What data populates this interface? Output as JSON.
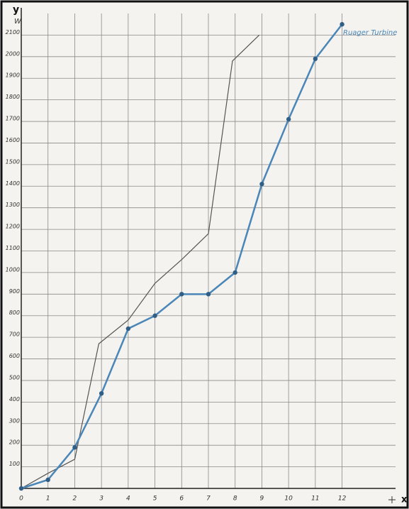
{
  "chart_data": {
    "type": "line",
    "y_label": "y",
    "y_unit": "W",
    "x_label": "x",
    "xlim": [
      0,
      14
    ],
    "ylim": [
      0,
      2200
    ],
    "xticks": [
      0,
      1,
      2,
      3,
      4,
      5,
      6,
      7,
      8,
      9,
      10,
      11,
      12
    ],
    "yticks": [
      100,
      200,
      300,
      400,
      500,
      600,
      700,
      800,
      900,
      1000,
      1100,
      1200,
      1300,
      1400,
      1500,
      1600,
      1700,
      1800,
      1900,
      2000,
      2100
    ],
    "grid": true,
    "series": [
      {
        "color": "#555555",
        "markers": false,
        "x": [
          0,
          1,
          2,
          2.9,
          4,
          5,
          6,
          7,
          7.9,
          8.9
        ],
        "values": [
          0,
          70,
          135,
          670,
          780,
          950,
          1060,
          1180,
          1980,
          2100
        ]
      },
      {
        "name": "Ruager Turbine",
        "color": "#4a86b8",
        "markers": true,
        "x": [
          0,
          1,
          2,
          3,
          4,
          5,
          6,
          7,
          8,
          9,
          10,
          11,
          12
        ],
        "values": [
          0,
          40,
          190,
          440,
          740,
          800,
          900,
          900,
          1000,
          1410,
          1710,
          1990,
          2150
        ]
      }
    ]
  }
}
